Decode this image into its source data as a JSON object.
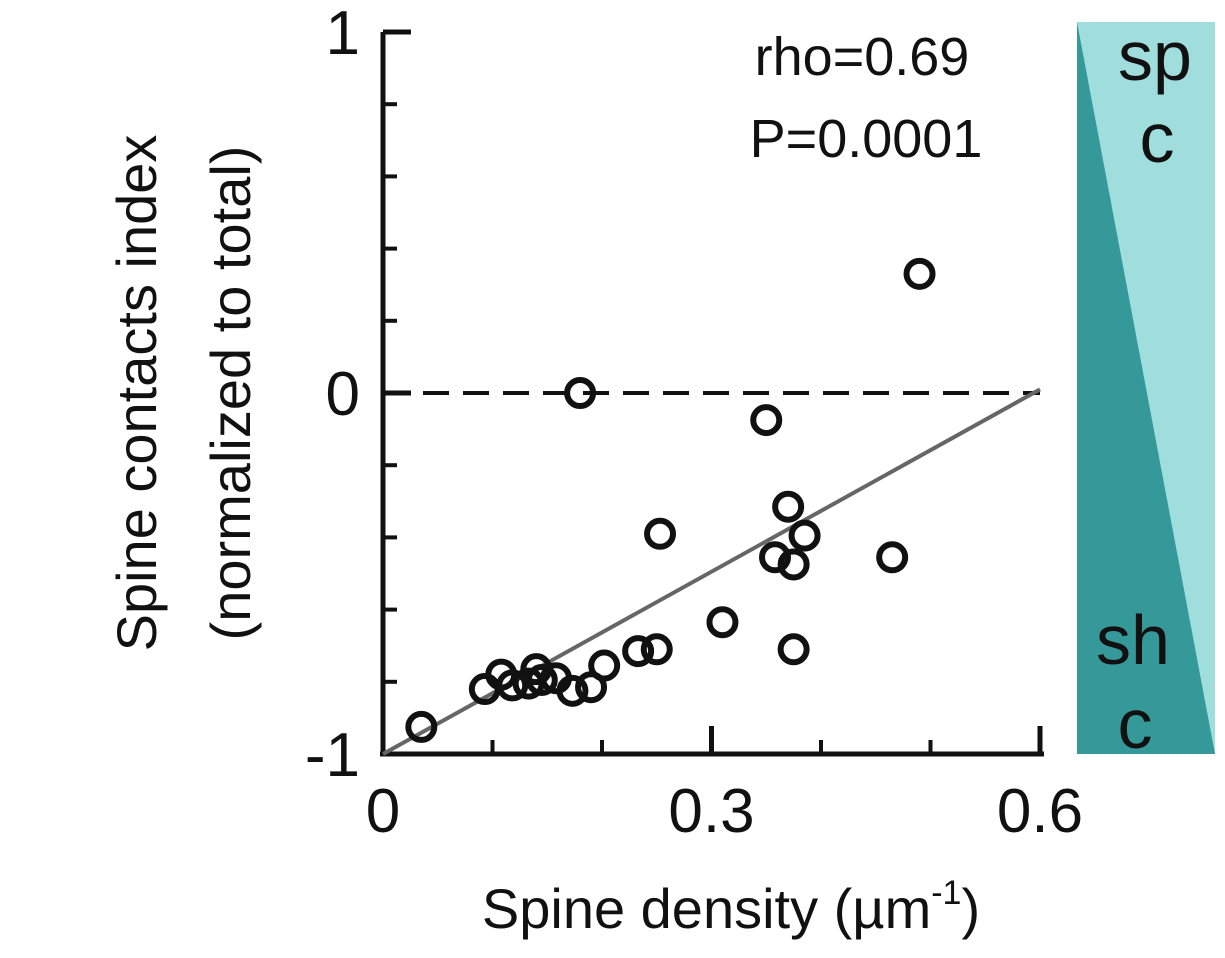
{
  "chart_data": {
    "type": "scatter",
    "xlabel": "Spine density (µm",
    "xlabel_superscript": "-1",
    "xlabel_close": ")",
    "ylabel_line1": "Spine contacts index",
    "ylabel_line2": "(normalized to total)",
    "xlim": [
      0,
      0.6
    ],
    "ylim": [
      -1,
      1
    ],
    "xticks": [
      0,
      0.3,
      0.6
    ],
    "xtick_labels": [
      "0",
      "0.3",
      "0.6"
    ],
    "yticks": [
      -1,
      0,
      1
    ],
    "ytick_labels": [
      "-1",
      "0",
      "1"
    ],
    "y_minor_step": 0.2,
    "x_minor_step": 0.1,
    "reference_line": {
      "y": 0,
      "style": "dashed",
      "color": "#111111"
    },
    "fit_line": {
      "x": [
        0,
        0.6
      ],
      "y": [
        -1,
        0.01
      ],
      "color": "#666666"
    },
    "annotations": [
      "rho=0.69",
      "P=0.0001"
    ],
    "marker": {
      "shape": "open-circle",
      "color": "#111111"
    },
    "points": [
      {
        "x": 0.035,
        "y": -0.925
      },
      {
        "x": 0.093,
        "y": -0.82
      },
      {
        "x": 0.108,
        "y": -0.78
      },
      {
        "x": 0.118,
        "y": -0.81
      },
      {
        "x": 0.133,
        "y": -0.805
      },
      {
        "x": 0.14,
        "y": -0.765
      },
      {
        "x": 0.145,
        "y": -0.795
      },
      {
        "x": 0.158,
        "y": -0.79
      },
      {
        "x": 0.173,
        "y": -0.825
      },
      {
        "x": 0.19,
        "y": -0.815
      },
      {
        "x": 0.202,
        "y": -0.755
      },
      {
        "x": 0.18,
        "y": 0.0
      },
      {
        "x": 0.233,
        "y": -0.715
      },
      {
        "x": 0.25,
        "y": -0.71
      },
      {
        "x": 0.253,
        "y": -0.39
      },
      {
        "x": 0.31,
        "y": -0.635
      },
      {
        "x": 0.35,
        "y": -0.075
      },
      {
        "x": 0.358,
        "y": -0.455
      },
      {
        "x": 0.37,
        "y": -0.315
      },
      {
        "x": 0.375,
        "y": -0.475
      },
      {
        "x": 0.385,
        "y": -0.395
      },
      {
        "x": 0.375,
        "y": -0.71
      },
      {
        "x": 0.465,
        "y": -0.455
      },
      {
        "x": 0.49,
        "y": 0.33
      }
    ]
  },
  "side_band": {
    "top_label_line1": "sp",
    "top_label_line2": "c",
    "bottom_label_line1": "sh",
    "bottom_label_line2": "c",
    "light_color": "#9fdedd",
    "dark_color": "#35999a"
  }
}
